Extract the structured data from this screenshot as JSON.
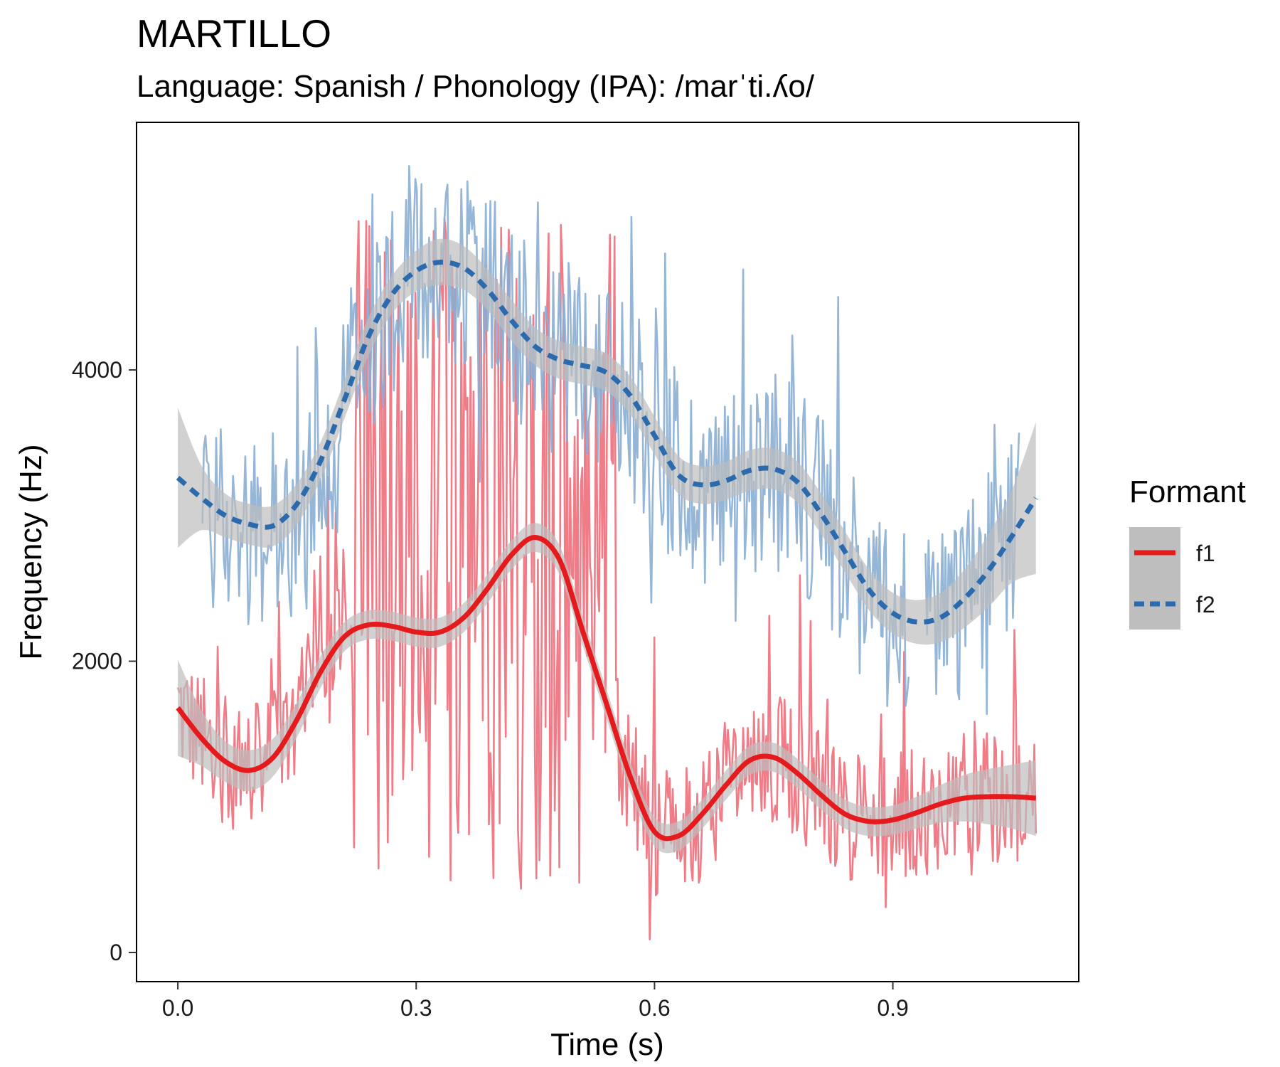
{
  "chart_data": {
    "type": "line",
    "title": "MARTILLO",
    "subtitle": "Language: Spanish / Phonology (IPA): /marˈti.ʎo/",
    "xlabel": "Time (s)",
    "ylabel": "Frequency (Hz)",
    "xlim": [
      -0.052,
      1.134
    ],
    "ylim": [
      -200,
      5700
    ],
    "x_ticks": [
      0.0,
      0.3,
      0.6,
      0.9
    ],
    "x_tick_labels": [
      "0.0",
      "0.3",
      "0.6",
      "0.9"
    ],
    "y_ticks": [
      0,
      2000,
      4000
    ],
    "y_tick_labels": [
      "0",
      "2000",
      "4000"
    ],
    "grid": false,
    "legend": {
      "title": "Formant",
      "position": "right",
      "entries": [
        "f1",
        "f2"
      ]
    },
    "colors": {
      "f1": "#E41A1C",
      "f1_raw": "#EE6E7A",
      "f2": "#2C6AAE",
      "f2_raw": "#8AAED3",
      "ribbon": "#BEBEBE"
    },
    "series": [
      {
        "name": "f1",
        "line_style": "solid",
        "smooth_x": [
          0.0,
          0.03,
          0.06,
          0.09,
          0.12,
          0.15,
          0.18,
          0.21,
          0.24,
          0.27,
          0.3,
          0.33,
          0.36,
          0.39,
          0.42,
          0.45,
          0.48,
          0.51,
          0.54,
          0.57,
          0.6,
          0.63,
          0.66,
          0.69,
          0.72,
          0.75,
          0.78,
          0.81,
          0.84,
          0.87,
          0.9,
          0.93,
          0.96,
          0.99,
          1.02,
          1.05,
          1.08
        ],
        "smooth_y": [
          1680,
          1470,
          1310,
          1250,
          1340,
          1600,
          1930,
          2170,
          2250,
          2240,
          2200,
          2200,
          2300,
          2500,
          2730,
          2850,
          2700,
          2200,
          1700,
          1200,
          830,
          800,
          950,
          1150,
          1320,
          1340,
          1230,
          1080,
          950,
          900,
          910,
          960,
          1020,
          1060,
          1070,
          1070,
          1060
        ],
        "ci_halfwidth": [
          330,
          190,
          140,
          140,
          130,
          120,
          110,
          100,
          100,
          100,
          100,
          100,
          100,
          100,
          100,
          100,
          100,
          100,
          100,
          100,
          100,
          100,
          100,
          100,
          100,
          100,
          100,
          100,
          100,
          100,
          100,
          110,
          130,
          160,
          190,
          220,
          260
        ],
        "raw_summary": "dense per-frame F1 estimates, mostly 500-1800 Hz, spiking up to ~5000 Hz between 0.22 and 0.55 s"
      },
      {
        "name": "f2",
        "line_style": "dashed",
        "smooth_x": [
          0.0,
          0.03,
          0.06,
          0.09,
          0.12,
          0.15,
          0.18,
          0.21,
          0.24,
          0.27,
          0.3,
          0.33,
          0.36,
          0.39,
          0.42,
          0.45,
          0.48,
          0.51,
          0.54,
          0.57,
          0.6,
          0.63,
          0.66,
          0.69,
          0.72,
          0.75,
          0.78,
          0.81,
          0.84,
          0.87,
          0.9,
          0.93,
          0.96,
          0.99,
          1.02,
          1.05,
          1.08
        ],
        "smooth_y": [
          3260,
          3120,
          3000,
          2940,
          2930,
          3080,
          3380,
          3800,
          4230,
          4520,
          4680,
          4740,
          4700,
          4550,
          4340,
          4160,
          4070,
          4030,
          3980,
          3820,
          3550,
          3280,
          3210,
          3240,
          3310,
          3320,
          3230,
          3010,
          2750,
          2490,
          2330,
          2270,
          2300,
          2430,
          2620,
          2860,
          3120
        ],
        "ci_halfwidth": [
          480,
          220,
          150,
          140,
          140,
          140,
          130,
          130,
          130,
          130,
          140,
          160,
          150,
          140,
          140,
          130,
          130,
          130,
          130,
          130,
          130,
          130,
          130,
          130,
          140,
          140,
          140,
          140,
          140,
          140,
          140,
          150,
          170,
          200,
          250,
          320,
          520
        ],
        "raw_summary": "per-frame F2 estimates with gaps, roughly 1400-5400 Hz, densest 0.03-1.06 s"
      }
    ]
  }
}
